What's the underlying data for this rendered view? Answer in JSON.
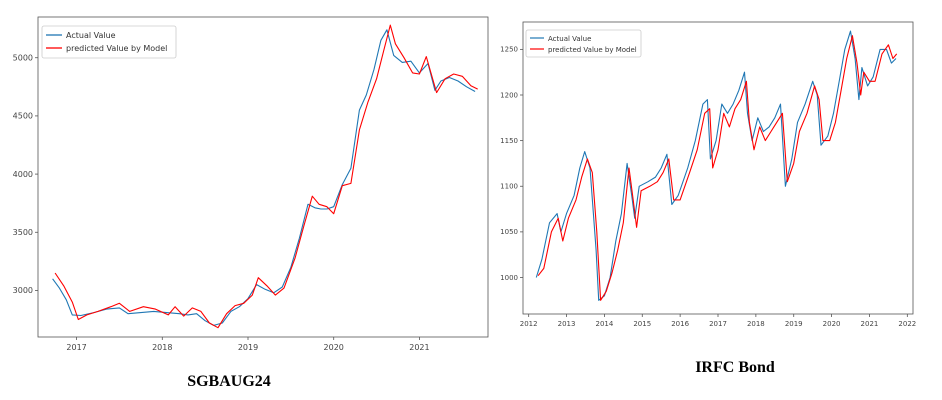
{
  "colors": {
    "actual": "#1f77b4",
    "predicted": "#ff0000",
    "frame": "#555555",
    "background": "#ffffff"
  },
  "chart_data": [
    {
      "type": "line",
      "caption": "SGBAUG24",
      "title": "",
      "xlabel": "",
      "ylabel": "",
      "legend_position": "top-left",
      "grid": false,
      "xlim": [
        2016.55,
        2021.8
      ],
      "ylim": [
        2600,
        5350
      ],
      "x_ticks": [
        2017,
        2018,
        2019,
        2020,
        2021
      ],
      "x_tick_labels": [
        "2017",
        "2018",
        "2019",
        "2020",
        "2021"
      ],
      "y_ticks": [
        3000,
        3500,
        4000,
        4500,
        5000
      ],
      "y_tick_labels": [
        "3000",
        "3500",
        "4000",
        "4500",
        "5000"
      ],
      "series": [
        {
          "name": "Actual Value",
          "color": "#1f77b4",
          "points": [
            [
              2016.72,
              3100
            ],
            [
              2016.8,
              3020
            ],
            [
              2016.88,
              2920
            ],
            [
              2016.95,
              2790
            ],
            [
              2017.05,
              2785
            ],
            [
              2017.2,
              2810
            ],
            [
              2017.35,
              2840
            ],
            [
              2017.5,
              2850
            ],
            [
              2017.6,
              2800
            ],
            [
              2017.75,
              2810
            ],
            [
              2017.9,
              2820
            ],
            [
              2018.05,
              2810
            ],
            [
              2018.2,
              2800
            ],
            [
              2018.3,
              2790
            ],
            [
              2018.4,
              2800
            ],
            [
              2018.5,
              2740
            ],
            [
              2018.6,
              2700
            ],
            [
              2018.7,
              2720
            ],
            [
              2018.8,
              2820
            ],
            [
              2018.9,
              2860
            ],
            [
              2019.0,
              2930
            ],
            [
              2019.1,
              3050
            ],
            [
              2019.2,
              3010
            ],
            [
              2019.3,
              2980
            ],
            [
              2019.4,
              3030
            ],
            [
              2019.5,
              3200
            ],
            [
              2019.6,
              3450
            ],
            [
              2019.7,
              3740
            ],
            [
              2019.78,
              3710
            ],
            [
              2019.85,
              3700
            ],
            [
              2019.92,
              3700
            ],
            [
              2020.0,
              3720
            ],
            [
              2020.1,
              3910
            ],
            [
              2020.2,
              4050
            ],
            [
              2020.3,
              4550
            ],
            [
              2020.38,
              4680
            ],
            [
              2020.47,
              4900
            ],
            [
              2020.55,
              5150
            ],
            [
              2020.62,
              5240
            ],
            [
              2020.7,
              5020
            ],
            [
              2020.8,
              4960
            ],
            [
              2020.9,
              4970
            ],
            [
              2021.0,
              4870
            ],
            [
              2021.1,
              4950
            ],
            [
              2021.18,
              4720
            ],
            [
              2021.25,
              4800
            ],
            [
              2021.35,
              4830
            ],
            [
              2021.45,
              4800
            ],
            [
              2021.55,
              4750
            ],
            [
              2021.65,
              4710
            ]
          ]
        },
        {
          "name": "predicted Value by Model",
          "color": "#ff0000",
          "points": [
            [
              2016.75,
              3150
            ],
            [
              2016.85,
              3040
            ],
            [
              2016.95,
              2900
            ],
            [
              2017.02,
              2750
            ],
            [
              2017.12,
              2790
            ],
            [
              2017.25,
              2820
            ],
            [
              2017.4,
              2860
            ],
            [
              2017.5,
              2890
            ],
            [
              2017.62,
              2820
            ],
            [
              2017.78,
              2860
            ],
            [
              2017.92,
              2840
            ],
            [
              2018.07,
              2790
            ],
            [
              2018.15,
              2860
            ],
            [
              2018.25,
              2780
            ],
            [
              2018.35,
              2850
            ],
            [
              2018.45,
              2820
            ],
            [
              2018.55,
              2720
            ],
            [
              2018.65,
              2680
            ],
            [
              2018.75,
              2800
            ],
            [
              2018.85,
              2870
            ],
            [
              2018.95,
              2890
            ],
            [
              2019.05,
              2960
            ],
            [
              2019.12,
              3110
            ],
            [
              2019.22,
              3040
            ],
            [
              2019.32,
              2960
            ],
            [
              2019.42,
              3020
            ],
            [
              2019.55,
              3280
            ],
            [
              2019.65,
              3550
            ],
            [
              2019.75,
              3810
            ],
            [
              2019.83,
              3740
            ],
            [
              2019.92,
              3720
            ],
            [
              2020.0,
              3660
            ],
            [
              2020.1,
              3900
            ],
            [
              2020.2,
              3920
            ],
            [
              2020.3,
              4380
            ],
            [
              2020.4,
              4620
            ],
            [
              2020.5,
              4820
            ],
            [
              2020.58,
              5050
            ],
            [
              2020.66,
              5280
            ],
            [
              2020.72,
              5120
            ],
            [
              2020.82,
              5000
            ],
            [
              2020.92,
              4870
            ],
            [
              2021.0,
              4860
            ],
            [
              2021.08,
              5010
            ],
            [
              2021.2,
              4700
            ],
            [
              2021.3,
              4820
            ],
            [
              2021.4,
              4860
            ],
            [
              2021.5,
              4840
            ],
            [
              2021.6,
              4760
            ],
            [
              2021.68,
              4730
            ]
          ]
        }
      ]
    },
    {
      "type": "line",
      "caption": "IRFC Bond",
      "title": "",
      "xlabel": "",
      "ylabel": "",
      "legend_position": "top-left",
      "grid": false,
      "xlim": [
        2011.85,
        2022.15
      ],
      "ylim": [
        960,
        1280
      ],
      "x_ticks": [
        2012,
        2013,
        2014,
        2015,
        2016,
        2017,
        2018,
        2019,
        2020,
        2021,
        2022
      ],
      "x_tick_labels": [
        "2012",
        "2013",
        "2014",
        "2015",
        "2016",
        "2017",
        "2018",
        "2019",
        "2020",
        "2021",
        "2022"
      ],
      "y_ticks": [
        1000,
        1050,
        1100,
        1150,
        1200,
        1250
      ],
      "y_tick_labels": [
        "1000",
        "1050",
        "1100",
        "1150",
        "1200",
        "1250"
      ],
      "series": [
        {
          "name": "Actual Value",
          "color": "#1f77b4",
          "points": [
            [
              2012.2,
              1000
            ],
            [
              2012.35,
              1020
            ],
            [
              2012.55,
              1060
            ],
            [
              2012.75,
              1070
            ],
            [
              2012.85,
              1050
            ],
            [
              2013.0,
              1070
            ],
            [
              2013.2,
              1090
            ],
            [
              2013.35,
              1120
            ],
            [
              2013.48,
              1138
            ],
            [
              2013.62,
              1120
            ],
            [
              2013.78,
              1030
            ],
            [
              2013.85,
              975
            ],
            [
              2014.0,
              980
            ],
            [
              2014.15,
              1000
            ],
            [
              2014.3,
              1040
            ],
            [
              2014.45,
              1070
            ],
            [
              2014.6,
              1125
            ],
            [
              2014.72,
              1090
            ],
            [
              2014.8,
              1065
            ],
            [
              2014.92,
              1100
            ],
            [
              2015.15,
              1105
            ],
            [
              2015.35,
              1110
            ],
            [
              2015.5,
              1120
            ],
            [
              2015.65,
              1135
            ],
            [
              2015.78,
              1080
            ],
            [
              2015.95,
              1090
            ],
            [
              2016.2,
              1120
            ],
            [
              2016.4,
              1150
            ],
            [
              2016.6,
              1190
            ],
            [
              2016.72,
              1195
            ],
            [
              2016.8,
              1130
            ],
            [
              2016.95,
              1150
            ],
            [
              2017.1,
              1190
            ],
            [
              2017.25,
              1180
            ],
            [
              2017.4,
              1190
            ],
            [
              2017.55,
              1205
            ],
            [
              2017.7,
              1225
            ],
            [
              2017.78,
              1180
            ],
            [
              2017.9,
              1150
            ],
            [
              2018.05,
              1175
            ],
            [
              2018.2,
              1160
            ],
            [
              2018.35,
              1165
            ],
            [
              2018.5,
              1175
            ],
            [
              2018.65,
              1190
            ],
            [
              2018.78,
              1100
            ],
            [
              2018.95,
              1130
            ],
            [
              2019.1,
              1170
            ],
            [
              2019.3,
              1190
            ],
            [
              2019.5,
              1215
            ],
            [
              2019.62,
              1200
            ],
            [
              2019.72,
              1145
            ],
            [
              2019.9,
              1155
            ],
            [
              2020.05,
              1180
            ],
            [
              2020.2,
              1215
            ],
            [
              2020.35,
              1250
            ],
            [
              2020.5,
              1270
            ],
            [
              2020.62,
              1240
            ],
            [
              2020.72,
              1195
            ],
            [
              2020.8,
              1230
            ],
            [
              2020.95,
              1210
            ],
            [
              2021.1,
              1220
            ],
            [
              2021.28,
              1250
            ],
            [
              2021.45,
              1250
            ],
            [
              2021.58,
              1235
            ],
            [
              2021.7,
              1240
            ]
          ]
        },
        {
          "name": "predicted Value by Model",
          "color": "#ff0000",
          "points": [
            [
              2012.25,
              1002
            ],
            [
              2012.4,
              1010
            ],
            [
              2012.6,
              1050
            ],
            [
              2012.78,
              1065
            ],
            [
              2012.9,
              1040
            ],
            [
              2013.05,
              1065
            ],
            [
              2013.25,
              1085
            ],
            [
              2013.4,
              1110
            ],
            [
              2013.55,
              1130
            ],
            [
              2013.68,
              1115
            ],
            [
              2013.8,
              1050
            ],
            [
              2013.9,
              975
            ],
            [
              2014.05,
              985
            ],
            [
              2014.2,
              1005
            ],
            [
              2014.35,
              1030
            ],
            [
              2014.5,
              1060
            ],
            [
              2014.65,
              1120
            ],
            [
              2014.76,
              1085
            ],
            [
              2014.85,
              1055
            ],
            [
              2014.97,
              1095
            ],
            [
              2015.2,
              1100
            ],
            [
              2015.4,
              1105
            ],
            [
              2015.55,
              1115
            ],
            [
              2015.7,
              1130
            ],
            [
              2015.83,
              1085
            ],
            [
              2016.0,
              1085
            ],
            [
              2016.25,
              1115
            ],
            [
              2016.45,
              1140
            ],
            [
              2016.65,
              1180
            ],
            [
              2016.78,
              1185
            ],
            [
              2016.86,
              1120
            ],
            [
              2017.0,
              1140
            ],
            [
              2017.15,
              1180
            ],
            [
              2017.3,
              1165
            ],
            [
              2017.45,
              1185
            ],
            [
              2017.6,
              1195
            ],
            [
              2017.75,
              1215
            ],
            [
              2017.83,
              1170
            ],
            [
              2017.95,
              1140
            ],
            [
              2018.1,
              1165
            ],
            [
              2018.25,
              1150
            ],
            [
              2018.4,
              1160
            ],
            [
              2018.55,
              1170
            ],
            [
              2018.7,
              1180
            ],
            [
              2018.83,
              1105
            ],
            [
              2019.0,
              1125
            ],
            [
              2019.15,
              1160
            ],
            [
              2019.35,
              1180
            ],
            [
              2019.55,
              1210
            ],
            [
              2019.67,
              1195
            ],
            [
              2019.77,
              1150
            ],
            [
              2019.95,
              1150
            ],
            [
              2020.1,
              1170
            ],
            [
              2020.25,
              1205
            ],
            [
              2020.4,
              1240
            ],
            [
              2020.55,
              1265
            ],
            [
              2020.67,
              1235
            ],
            [
              2020.77,
              1200
            ],
            [
              2020.85,
              1225
            ],
            [
              2021.0,
              1215
            ],
            [
              2021.15,
              1215
            ],
            [
              2021.33,
              1245
            ],
            [
              2021.5,
              1255
            ],
            [
              2021.62,
              1240
            ],
            [
              2021.72,
              1245
            ]
          ]
        }
      ]
    }
  ]
}
